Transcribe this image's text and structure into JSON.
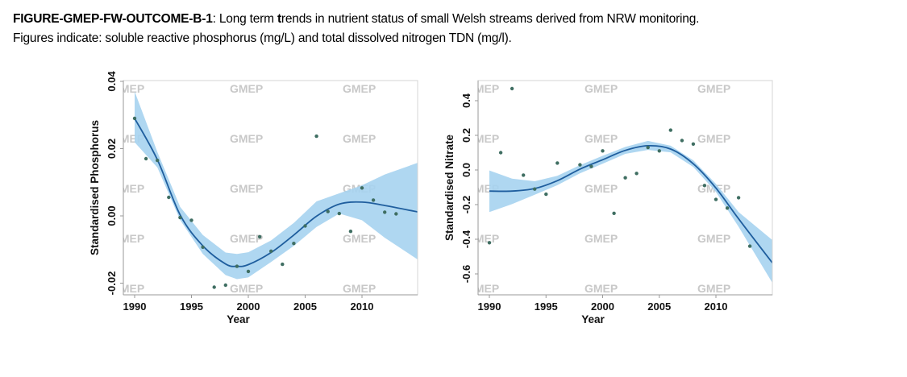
{
  "caption": {
    "id_label": "FIGURE-GMEP-FW-OUTCOME-B-1",
    "line1_pre": ": Long term ",
    "line1_bold_t": "t",
    "line1_post": "rends in nutrient status of small Welsh streams derived from NRW monitoring.",
    "line2": "Figures indicate: soluble reactive phosphorus (mg/L) and total dissolved nitrogen TDN (mg/l)."
  },
  "watermark_text": "GMEP",
  "colors": {
    "band": "#a6d3ef",
    "line": "#1f5e9e",
    "points": "#3f6e62",
    "axis": "#9a9a9a",
    "watermark": "#c8c8c8"
  },
  "chart_data": [
    {
      "type": "scatter",
      "title": "",
      "xlabel": "Year",
      "ylabel": "Standardised Phosphorus",
      "xlim": [
        1989,
        2015
      ],
      "ylim": [
        -0.0235,
        0.04
      ],
      "xticks": [
        1990,
        1995,
        2000,
        2005,
        2010
      ],
      "xtick_labels": [
        "1990",
        "1995",
        "2000",
        "2005",
        "2010"
      ],
      "yticks": [
        -0.02,
        0.0,
        0.02,
        0.04
      ],
      "ytick_labels": [
        "-0.02",
        "0.00",
        "0.02",
        "0.04"
      ],
      "grid": false,
      "legend": "none",
      "points": {
        "x": [
          1990,
          1991,
          1992,
          1993,
          1994,
          1995,
          1996,
          1997,
          1998,
          1999,
          2000,
          2001,
          2002,
          2003,
          2004,
          2005,
          2006,
          2007,
          2008,
          2009,
          2010,
          2011,
          2012,
          2013
        ],
        "y": [
          0.029,
          0.017,
          0.0165,
          0.0055,
          -0.0005,
          -0.0013,
          -0.0093,
          -0.0212,
          -0.0206,
          -0.015,
          -0.0165,
          -0.0062,
          -0.0105,
          -0.0144,
          -0.0082,
          -0.003,
          0.0237,
          0.0013,
          0.0007,
          -0.0046,
          0.0083,
          0.0047,
          0.0011,
          0.0006
        ]
      },
      "smooth_fit": {
        "x": [
          1990,
          1992,
          1994,
          1996,
          1998,
          1999,
          2000,
          2002,
          2004,
          2006,
          2008,
          2010,
          2012,
          2015
        ],
        "y": [
          0.029,
          0.0167,
          0.0003,
          -0.0089,
          -0.0143,
          -0.015,
          -0.0145,
          -0.0109,
          -0.0057,
          -0.0001,
          0.0035,
          0.0041,
          0.0031,
          0.0011
        ],
        "upper": [
          0.037,
          0.019,
          0.0027,
          -0.0057,
          -0.0109,
          -0.0113,
          -0.0108,
          -0.0073,
          -0.0021,
          0.0043,
          0.0067,
          0.0091,
          0.0123,
          0.0159
        ],
        "lower": [
          0.0219,
          0.0144,
          -0.0012,
          -0.0113,
          -0.0176,
          -0.0188,
          -0.0183,
          -0.0137,
          -0.0089,
          -0.0033,
          0.0007,
          -0.0013,
          -0.0065,
          -0.0132
        ]
      }
    },
    {
      "type": "scatter",
      "title": "",
      "xlabel": "Year",
      "ylabel": "Standardised Nitrate",
      "xlim": [
        1989,
        2015
      ],
      "ylim": [
        -0.72,
        0.52
      ],
      "xticks": [
        1990,
        1995,
        2000,
        2005,
        2010
      ],
      "xtick_labels": [
        "1990",
        "1995",
        "2000",
        "2005",
        "2010"
      ],
      "yticks": [
        -0.6,
        -0.4,
        -0.2,
        0.0,
        0.2,
        0.4
      ],
      "ytick_labels": [
        "-0.6",
        "-0.4",
        "-0.2",
        "0.0",
        "0.2",
        "0.4"
      ],
      "grid": false,
      "legend": "none",
      "points": {
        "x": [
          1990,
          1991,
          1992,
          1993,
          1994,
          1995,
          1996,
          1998,
          1999,
          2000,
          2001,
          2002,
          2003,
          2004,
          2005,
          2006,
          2007,
          2008,
          2009,
          2010,
          2011,
          2012,
          2013
        ],
        "y": [
          -0.42,
          0.1,
          0.47,
          -0.03,
          -0.11,
          -0.14,
          0.04,
          0.03,
          0.02,
          0.11,
          -0.25,
          -0.045,
          -0.02,
          0.13,
          0.11,
          0.23,
          0.17,
          0.15,
          -0.09,
          -0.17,
          -0.22,
          -0.16,
          -0.44
        ]
      },
      "smooth_fit": {
        "x": [
          1990,
          1992,
          1994,
          1996,
          1998,
          2000,
          2002,
          2004,
          2006,
          2008,
          2010,
          2012,
          2015
        ],
        "y": [
          -0.122,
          -0.122,
          -0.107,
          -0.062,
          0.005,
          0.059,
          0.113,
          0.14,
          0.121,
          0.036,
          -0.104,
          -0.282,
          -0.538
        ],
        "upper": [
          -0.003,
          -0.05,
          -0.065,
          -0.034,
          0.028,
          0.082,
          0.133,
          0.168,
          0.14,
          0.056,
          -0.08,
          -0.243,
          -0.406
        ],
        "lower": [
          -0.243,
          -0.197,
          -0.143,
          -0.088,
          -0.019,
          0.036,
          0.093,
          0.116,
          0.102,
          0.017,
          -0.127,
          -0.328,
          -0.654
        ]
      }
    }
  ]
}
